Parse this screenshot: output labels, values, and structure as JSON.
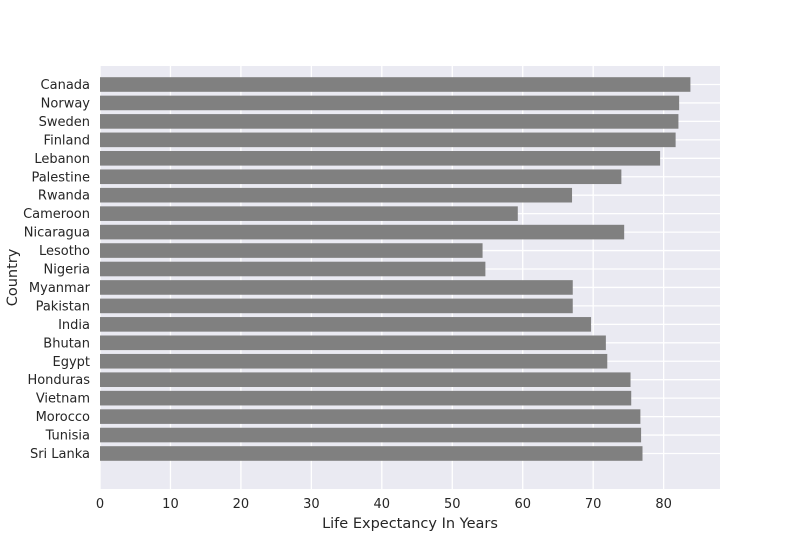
{
  "chart_data": {
    "type": "bar",
    "orientation": "horizontal",
    "title": "",
    "xlabel": "Life Expectancy In Years",
    "ylabel": "Country",
    "xlim": [
      0,
      88
    ],
    "x_ticks": [
      0,
      10,
      20,
      30,
      40,
      50,
      60,
      70,
      80
    ],
    "grid": true,
    "bar_color": "#808080",
    "background_color": "#eaeaf2",
    "grid_color": "#ffffff",
    "categories": [
      "Canada",
      "Norway",
      "Sweden",
      "Finland",
      "Lebanon",
      "Palestine",
      "Rwanda",
      "Cameroon",
      "Nicaragua",
      "Lesotho",
      "Nigeria",
      "Myanmar",
      "Pakistan",
      "India",
      "Bhutan",
      "Egypt",
      "Honduras",
      "Vietnam",
      "Morocco",
      "Tunisia",
      "Sri Lanka"
    ],
    "values": [
      83.8,
      82.2,
      82.1,
      81.7,
      79.5,
      74.0,
      67.0,
      59.3,
      74.4,
      54.3,
      54.7,
      67.1,
      67.1,
      69.7,
      71.8,
      72.0,
      75.3,
      75.4,
      76.7,
      76.8,
      77.0
    ]
  }
}
